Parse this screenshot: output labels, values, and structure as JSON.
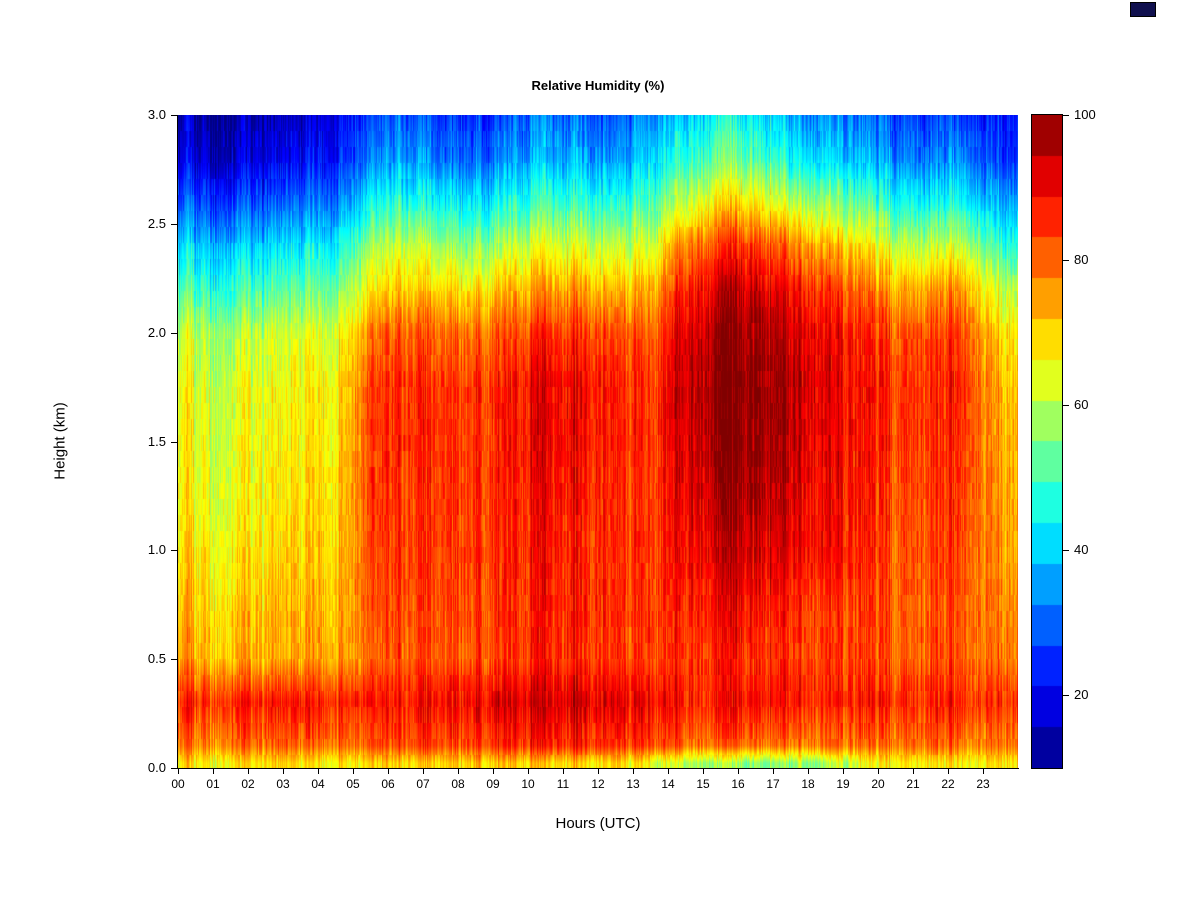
{
  "figure": {
    "title": "Relative Humidity (%)",
    "xlabel": "Hours (UTC)",
    "ylabel": "Height (km)"
  },
  "chart_data": {
    "type": "heatmap",
    "title": "Relative Humidity (%)",
    "xlabel": "Hours (UTC)",
    "ylabel": "Height (km)",
    "xlim": [
      0,
      24
    ],
    "ylim": [
      0,
      3
    ],
    "value_range": [
      10,
      100
    ],
    "x_ticks_hours": [
      0,
      1,
      2,
      3,
      4,
      5,
      6,
      7,
      8,
      9,
      10,
      11,
      12,
      13,
      14,
      15,
      16,
      17,
      18,
      19,
      20,
      21,
      22,
      23
    ],
    "x_tick_labels": [
      "00",
      "01",
      "02",
      "03",
      "04",
      "05",
      "06",
      "07",
      "08",
      "09",
      "10",
      "11",
      "12",
      "13",
      "14",
      "15",
      "16",
      "17",
      "18",
      "19",
      "20",
      "21",
      "22",
      "23"
    ],
    "y_ticks_km": [
      0.0,
      0.5,
      1.0,
      1.5,
      2.0,
      2.5,
      3.0
    ],
    "y_tick_labels": [
      "0.0",
      "0.5",
      "1.0",
      "1.5",
      "2.0",
      "2.5",
      "3.0"
    ],
    "colorbar_ticks": [
      20,
      40,
      60,
      80,
      100
    ],
    "colorbar_tick_labels": [
      "20",
      "40",
      "60",
      "80",
      "100"
    ],
    "colormap": [
      {
        "value": 10,
        "color": "#000080"
      },
      {
        "value": 21,
        "color": "#0000FF"
      },
      {
        "value": 44,
        "color": "#00FFFF"
      },
      {
        "value": 66,
        "color": "#FFFF00"
      },
      {
        "value": 89,
        "color": "#FF0000"
      },
      {
        "value": 100,
        "color": "#800000"
      }
    ],
    "grid_heights_km": [
      0.02,
      0.1,
      0.3,
      0.5,
      0.75,
      1.0,
      1.25,
      1.5,
      1.75,
      2.0,
      2.2,
      2.4,
      2.6,
      2.8,
      3.0
    ],
    "grid_hours": [
      0,
      1,
      2,
      3,
      4,
      5,
      6,
      7,
      8,
      9,
      10,
      11,
      12,
      13,
      14,
      15,
      16,
      17,
      18,
      19,
      20,
      21,
      22,
      23
    ],
    "values": [
      [
        68,
        67,
        68,
        68,
        68,
        69,
        70,
        70,
        70,
        70,
        70,
        70,
        69,
        64,
        60,
        57,
        56,
        58,
        60,
        64,
        67,
        68,
        68,
        68
      ],
      [
        78,
        78,
        79,
        80,
        80,
        82,
        83,
        83,
        84,
        85,
        86,
        85,
        84,
        82,
        80,
        80,
        80,
        80,
        80,
        79,
        79,
        79,
        79,
        78
      ],
      [
        86,
        86,
        87,
        87,
        87,
        88,
        88,
        89,
        90,
        92,
        93,
        92,
        91,
        89,
        88,
        88,
        89,
        89,
        88,
        87,
        86,
        86,
        87,
        85
      ],
      [
        74,
        72,
        73,
        74,
        75,
        80,
        82,
        82,
        82,
        84,
        86,
        85,
        84,
        83,
        85,
        86,
        86,
        86,
        85,
        83,
        81,
        81,
        82,
        78
      ],
      [
        71,
        69,
        71,
        72,
        73,
        82,
        84,
        83,
        83,
        85,
        87,
        86,
        84,
        83,
        87,
        89,
        89,
        88,
        86,
        84,
        81,
        81,
        83,
        77
      ],
      [
        68,
        66,
        68,
        70,
        71,
        83,
        85,
        84,
        84,
        85,
        88,
        86,
        85,
        83,
        90,
        93,
        94,
        92,
        90,
        86,
        82,
        82,
        84,
        75
      ],
      [
        66,
        64,
        66,
        68,
        70,
        84,
        85,
        84,
        84,
        86,
        89,
        87,
        85,
        83,
        92,
        96,
        97,
        94,
        91,
        87,
        83,
        83,
        85,
        74
      ],
      [
        65,
        63,
        65,
        67,
        69,
        84,
        86,
        85,
        84,
        87,
        91,
        88,
        86,
        83,
        94,
        98,
        99,
        96,
        92,
        88,
        84,
        84,
        86,
        73
      ],
      [
        64,
        62,
        64,
        66,
        68,
        83,
        86,
        85,
        84,
        87,
        91,
        89,
        86,
        83,
        95,
        99,
        100,
        97,
        93,
        88,
        85,
        85,
        87,
        72
      ],
      [
        60,
        58,
        60,
        62,
        64,
        78,
        82,
        80,
        79,
        82,
        85,
        84,
        82,
        80,
        93,
        97,
        98,
        95,
        91,
        86,
        82,
        82,
        84,
        68
      ],
      [
        50,
        48,
        50,
        52,
        55,
        68,
        72,
        70,
        68,
        72,
        75,
        74,
        72,
        72,
        88,
        93,
        94,
        90,
        86,
        80,
        74,
        74,
        76,
        60
      ],
      [
        40,
        38,
        40,
        42,
        45,
        58,
        62,
        58,
        55,
        60,
        64,
        62,
        60,
        62,
        78,
        84,
        85,
        80,
        75,
        68,
        62,
        60,
        62,
        48
      ],
      [
        28,
        26,
        28,
        30,
        33,
        45,
        48,
        44,
        42,
        46,
        50,
        48,
        46,
        50,
        62,
        68,
        68,
        62,
        58,
        52,
        46,
        44,
        46,
        36
      ],
      [
        18,
        16,
        18,
        20,
        24,
        33,
        36,
        32,
        30,
        34,
        38,
        36,
        34,
        40,
        48,
        54,
        52,
        46,
        42,
        38,
        34,
        32,
        34,
        26
      ],
      [
        14,
        12,
        14,
        16,
        20,
        28,
        30,
        26,
        25,
        28,
        32,
        30,
        28,
        34,
        40,
        45,
        43,
        38,
        35,
        32,
        28,
        26,
        28,
        22
      ]
    ],
    "legend_position": "right-colorbar",
    "grid_lines": false
  }
}
